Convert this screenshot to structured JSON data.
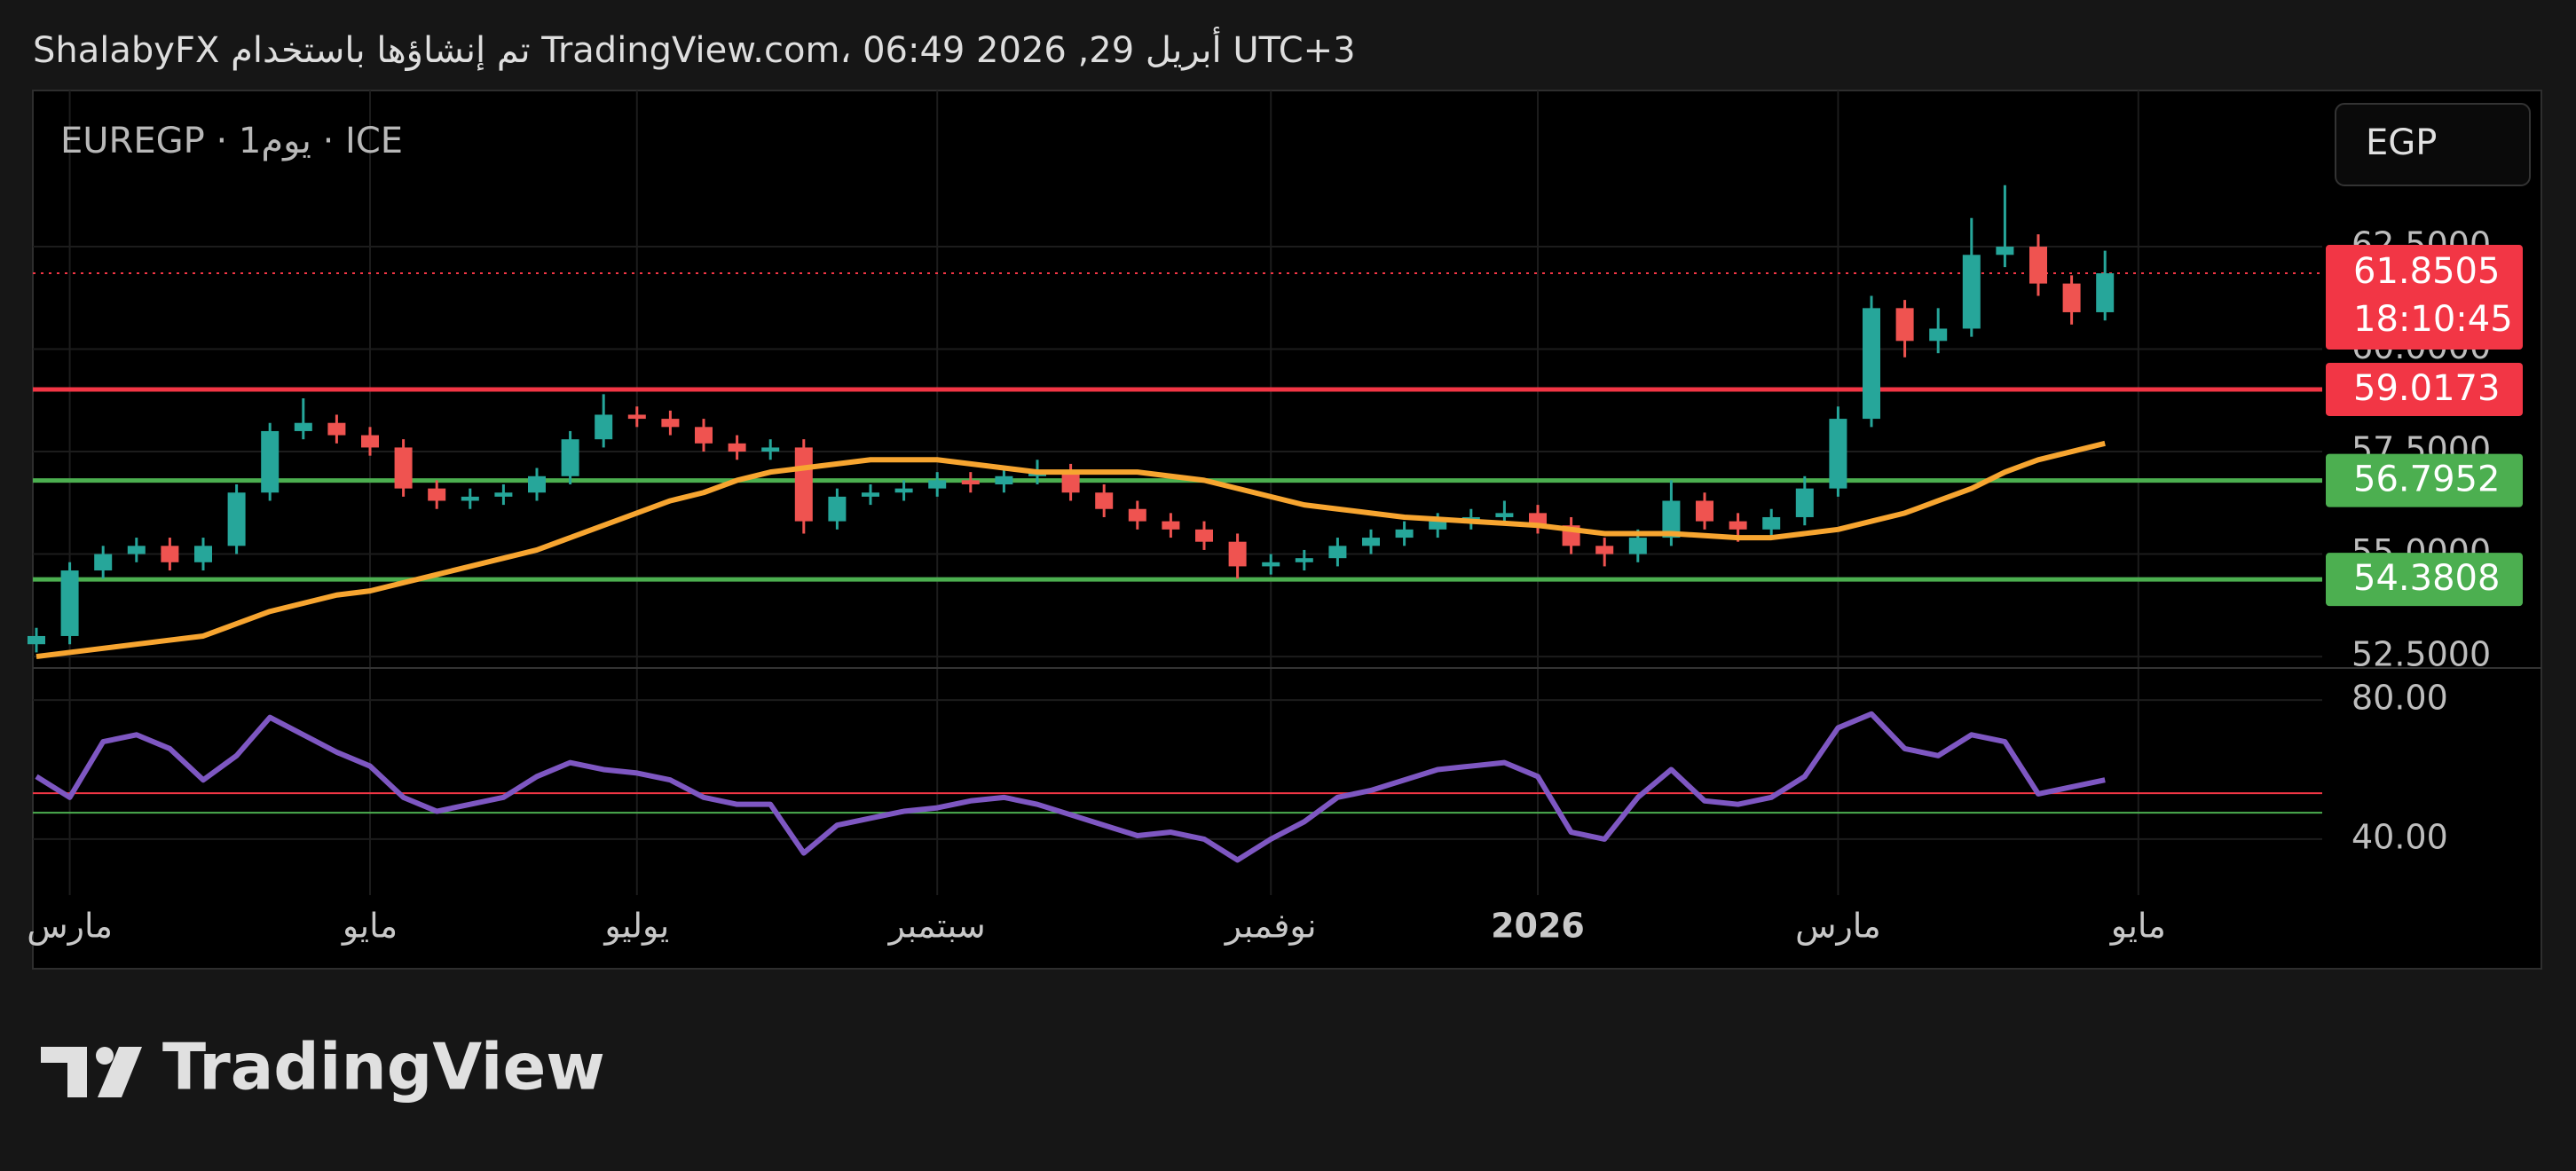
{
  "header": "ShalabyFX تم إنشاؤها باستخدام TradingView.com، 06:49 2026 ,29 أبريل UTC+3",
  "logo": "TradingView",
  "chart_data": {
    "type": "candlestick",
    "symbol": "EUREGP · 1يوم · ICE",
    "currency": "EGP",
    "categories": [
      null,
      "مارس",
      null,
      null,
      null,
      null,
      null,
      null,
      null,
      null,
      "مايو",
      null,
      null,
      null,
      null,
      null,
      null,
      null,
      "يوليو",
      null,
      null,
      null,
      null,
      null,
      null,
      null,
      null,
      "سبتمبر",
      null,
      null,
      null,
      null,
      null,
      null,
      null,
      null,
      null,
      "نوفمبر",
      null,
      null,
      null,
      null,
      null,
      null,
      null,
      "2026",
      null,
      null,
      null,
      null,
      null,
      null,
      null,
      null,
      "مارس",
      null,
      null,
      null,
      null,
      null,
      null,
      null,
      null,
      "مايو"
    ],
    "ohlc": {
      "up_color": "#26a69a",
      "down_color": "#ef5350",
      "open": [
        52.8,
        53.0,
        54.6,
        55.0,
        55.2,
        54.8,
        55.2,
        56.5,
        58.0,
        58.2,
        57.9,
        57.6,
        56.6,
        56.3,
        56.4,
        56.5,
        56.9,
        57.8,
        58.4,
        58.3,
        58.1,
        57.7,
        57.5,
        57.6,
        55.8,
        56.4,
        56.5,
        56.6,
        56.8,
        56.7,
        56.9,
        57.0,
        56.5,
        56.1,
        55.8,
        55.6,
        55.3,
        54.7,
        54.8,
        54.9,
        55.2,
        55.4,
        55.6,
        55.8,
        55.9,
        56.0,
        55.7,
        55.2,
        55.0,
        55.4,
        56.3,
        55.8,
        55.6,
        55.9,
        56.6,
        58.3,
        61.0,
        60.2,
        60.5,
        62.3,
        62.5,
        61.6,
        60.9,
        null
      ],
      "high": [
        53.2,
        54.8,
        55.2,
        55.4,
        55.4,
        55.4,
        56.7,
        58.2,
        58.8,
        58.4,
        58.1,
        57.8,
        56.8,
        56.6,
        56.7,
        57.1,
        58.0,
        58.9,
        58.6,
        58.5,
        58.3,
        57.9,
        57.8,
        57.8,
        56.6,
        56.7,
        56.8,
        57.0,
        57.0,
        57.1,
        57.3,
        57.2,
        56.7,
        56.3,
        56.0,
        55.8,
        55.5,
        55.0,
        55.1,
        55.4,
        55.6,
        55.8,
        56.0,
        56.1,
        56.3,
        56.2,
        55.9,
        55.4,
        55.6,
        56.8,
        56.5,
        56.0,
        56.1,
        56.9,
        58.6,
        61.3,
        61.2,
        61.0,
        63.2,
        64.0,
        62.8,
        61.8,
        62.4,
        null
      ],
      "low": [
        52.6,
        52.8,
        54.4,
        54.8,
        54.6,
        54.6,
        55.0,
        56.3,
        57.8,
        57.7,
        57.4,
        56.4,
        56.1,
        56.1,
        56.2,
        56.3,
        56.7,
        57.6,
        58.1,
        57.9,
        57.5,
        57.3,
        57.3,
        55.5,
        55.6,
        56.2,
        56.3,
        56.4,
        56.5,
        56.5,
        56.7,
        56.3,
        55.9,
        55.6,
        55.4,
        55.1,
        54.4,
        54.5,
        54.6,
        54.7,
        55.0,
        55.2,
        55.4,
        55.6,
        55.7,
        55.5,
        55.0,
        54.7,
        54.8,
        55.2,
        55.6,
        55.3,
        55.4,
        55.7,
        56.4,
        58.1,
        59.8,
        59.9,
        60.3,
        62.0,
        61.3,
        60.6,
        60.7,
        null
      ],
      "close": [
        53.0,
        54.6,
        55.0,
        55.2,
        54.8,
        55.2,
        56.5,
        58.0,
        58.2,
        57.9,
        57.6,
        56.6,
        56.3,
        56.4,
        56.5,
        56.9,
        57.8,
        58.4,
        58.3,
        58.1,
        57.7,
        57.5,
        57.6,
        55.8,
        56.4,
        56.5,
        56.6,
        56.8,
        56.7,
        56.9,
        57.0,
        56.5,
        56.1,
        55.8,
        55.6,
        55.3,
        54.7,
        54.8,
        54.9,
        55.2,
        55.4,
        55.6,
        55.8,
        55.9,
        56.0,
        55.7,
        55.2,
        55.0,
        55.4,
        56.3,
        55.8,
        55.6,
        55.9,
        56.6,
        58.3,
        61.0,
        60.2,
        60.5,
        62.3,
        62.5,
        61.6,
        60.9,
        61.85,
        null
      ]
    },
    "moving_average": {
      "color": "#f7a530",
      "values": [
        52.5,
        52.6,
        52.7,
        52.8,
        52.9,
        53.0,
        53.3,
        53.6,
        53.8,
        54.0,
        54.1,
        54.3,
        54.5,
        54.7,
        54.9,
        55.1,
        55.4,
        55.7,
        56.0,
        56.3,
        56.5,
        56.8,
        57.0,
        57.1,
        57.2,
        57.3,
        57.3,
        57.3,
        57.2,
        57.1,
        57.0,
        57.0,
        57.0,
        57.0,
        56.9,
        56.8,
        56.6,
        56.4,
        56.2,
        56.1,
        56.0,
        55.9,
        55.85,
        55.8,
        55.75,
        55.7,
        55.6,
        55.5,
        55.5,
        55.5,
        55.45,
        55.4,
        55.4,
        55.5,
        55.6,
        55.8,
        56.0,
        56.3,
        56.6,
        57.0,
        57.3,
        57.5,
        57.7,
        null
      ]
    },
    "levels": [
      {
        "value": 59.0173,
        "color": "#f23645"
      },
      {
        "value": 56.7952,
        "color": "#4caf50"
      },
      {
        "value": 54.3808,
        "color": "#4caf50"
      }
    ],
    "last_price": {
      "value": 61.8505,
      "countdown": "18:10:45",
      "color": "#f23645"
    },
    "ylim": [
      52.22,
      66.31
    ],
    "yticks": [
      {
        "value": 52.5,
        "label": "52.5000"
      },
      {
        "value": 55,
        "label": "55.0000"
      },
      {
        "value": 57.5,
        "label": "57.5000"
      },
      {
        "value": 60,
        "label": "60.0000"
      },
      {
        "value": 62.5,
        "label": "62.5000"
      }
    ],
    "grid": true,
    "rsi": {
      "color": "#7e57c2",
      "values": [
        58,
        52,
        68,
        70,
        66,
        57,
        64,
        75,
        70,
        65,
        61,
        52,
        48,
        50,
        52,
        58,
        62,
        60,
        59,
        57,
        52,
        50,
        50,
        36,
        44,
        46,
        48,
        49,
        51,
        52,
        50,
        47,
        44,
        41,
        42,
        40,
        34,
        40,
        45,
        52,
        54,
        57,
        60,
        61,
        62,
        58,
        42,
        40,
        52,
        60,
        51,
        50,
        52,
        58,
        72,
        76,
        66,
        64,
        70,
        68,
        53,
        55,
        57,
        null
      ],
      "ylim": [
        23.9,
        89.2
      ],
      "yticks": [
        {
          "value": 80,
          "label": "80.00"
        },
        {
          "value": 40,
          "label": "40.00"
        }
      ],
      "levels": [
        {
          "value": 53.2,
          "color": "#f23645"
        },
        {
          "value": 47.6,
          "color": "#4caf50"
        }
      ]
    }
  }
}
